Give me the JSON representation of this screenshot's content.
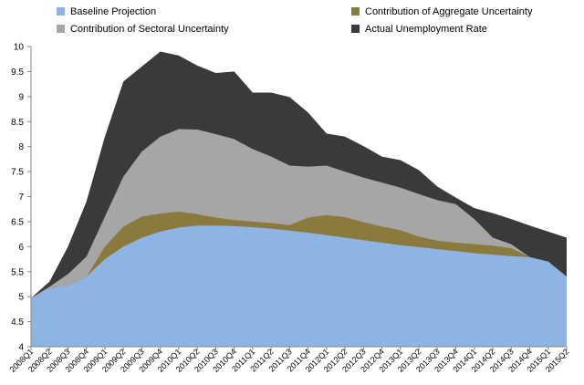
{
  "chart_data": {
    "type": "area",
    "title": "",
    "xlabel": "",
    "ylabel": "",
    "ylim": [
      4,
      10
    ],
    "yticks": [
      "4",
      "4.5",
      "5",
      "5.5",
      "6",
      "6.5",
      "7",
      "7.5",
      "8",
      "8.5",
      "9",
      "9.5",
      "10"
    ],
    "categories": [
      "2008Q1",
      "2008Q2",
      "2008Q3",
      "2008Q4",
      "2009Q1",
      "2009Q2",
      "2009Q3",
      "2009Q4",
      "2010Q1",
      "2010Q2",
      "2010Q3",
      "2010Q4",
      "2011Q1",
      "2011Q2",
      "2011Q3",
      "2011Q4",
      "2012Q1",
      "2012Q2",
      "2012Q3",
      "2012Q4",
      "2013Q1",
      "2013Q2",
      "2013Q3",
      "2013Q4",
      "2014Q1",
      "2014Q2",
      "2014Q3",
      "2014Q4",
      "2015Q1",
      "2015Q2"
    ],
    "legend_position": "top",
    "series": [
      {
        "name": "Baseline Projection",
        "color": "#8db4e2",
        "values": [
          4.97,
          5.17,
          5.22,
          5.4,
          5.75,
          6.0,
          6.18,
          6.3,
          6.38,
          6.42,
          6.42,
          6.41,
          6.39,
          6.36,
          6.32,
          6.28,
          6.23,
          6.18,
          6.13,
          6.08,
          6.03,
          5.99,
          5.95,
          5.91,
          5.87,
          5.84,
          5.81,
          5.79,
          5.7,
          5.4
        ]
      },
      {
        "name": "Contribution of Aggregate Uncertainty",
        "color": "#8a7a3e",
        "values": [
          4.97,
          5.17,
          5.22,
          5.4,
          6.0,
          6.4,
          6.6,
          6.66,
          6.7,
          6.65,
          6.58,
          6.53,
          6.5,
          6.47,
          6.43,
          6.58,
          6.63,
          6.59,
          6.49,
          6.4,
          6.33,
          6.2,
          6.12,
          6.08,
          6.05,
          6.02,
          5.97,
          5.79,
          5.7,
          5.4
        ]
      },
      {
        "name": "Contribution of Sectoral Uncertainty",
        "color": "#a6a6a6",
        "values": [
          4.97,
          5.2,
          5.45,
          5.8,
          6.6,
          7.4,
          7.9,
          8.2,
          8.35,
          8.34,
          8.25,
          8.15,
          7.95,
          7.8,
          7.62,
          7.6,
          7.62,
          7.5,
          7.38,
          7.28,
          7.18,
          7.05,
          6.93,
          6.85,
          6.55,
          6.18,
          6.05,
          5.79,
          5.7,
          5.4
        ]
      },
      {
        "name": "Actual Unemployment Rate",
        "color": "#3a3a3a",
        "values": [
          4.97,
          5.3,
          6.0,
          6.9,
          8.2,
          9.3,
          9.6,
          9.9,
          9.82,
          9.62,
          9.47,
          9.5,
          9.08,
          9.08,
          8.99,
          8.68,
          8.26,
          8.2,
          8.01,
          7.8,
          7.73,
          7.53,
          7.2,
          6.98,
          6.77,
          6.67,
          6.55,
          6.42,
          6.3,
          6.18
        ]
      }
    ]
  }
}
